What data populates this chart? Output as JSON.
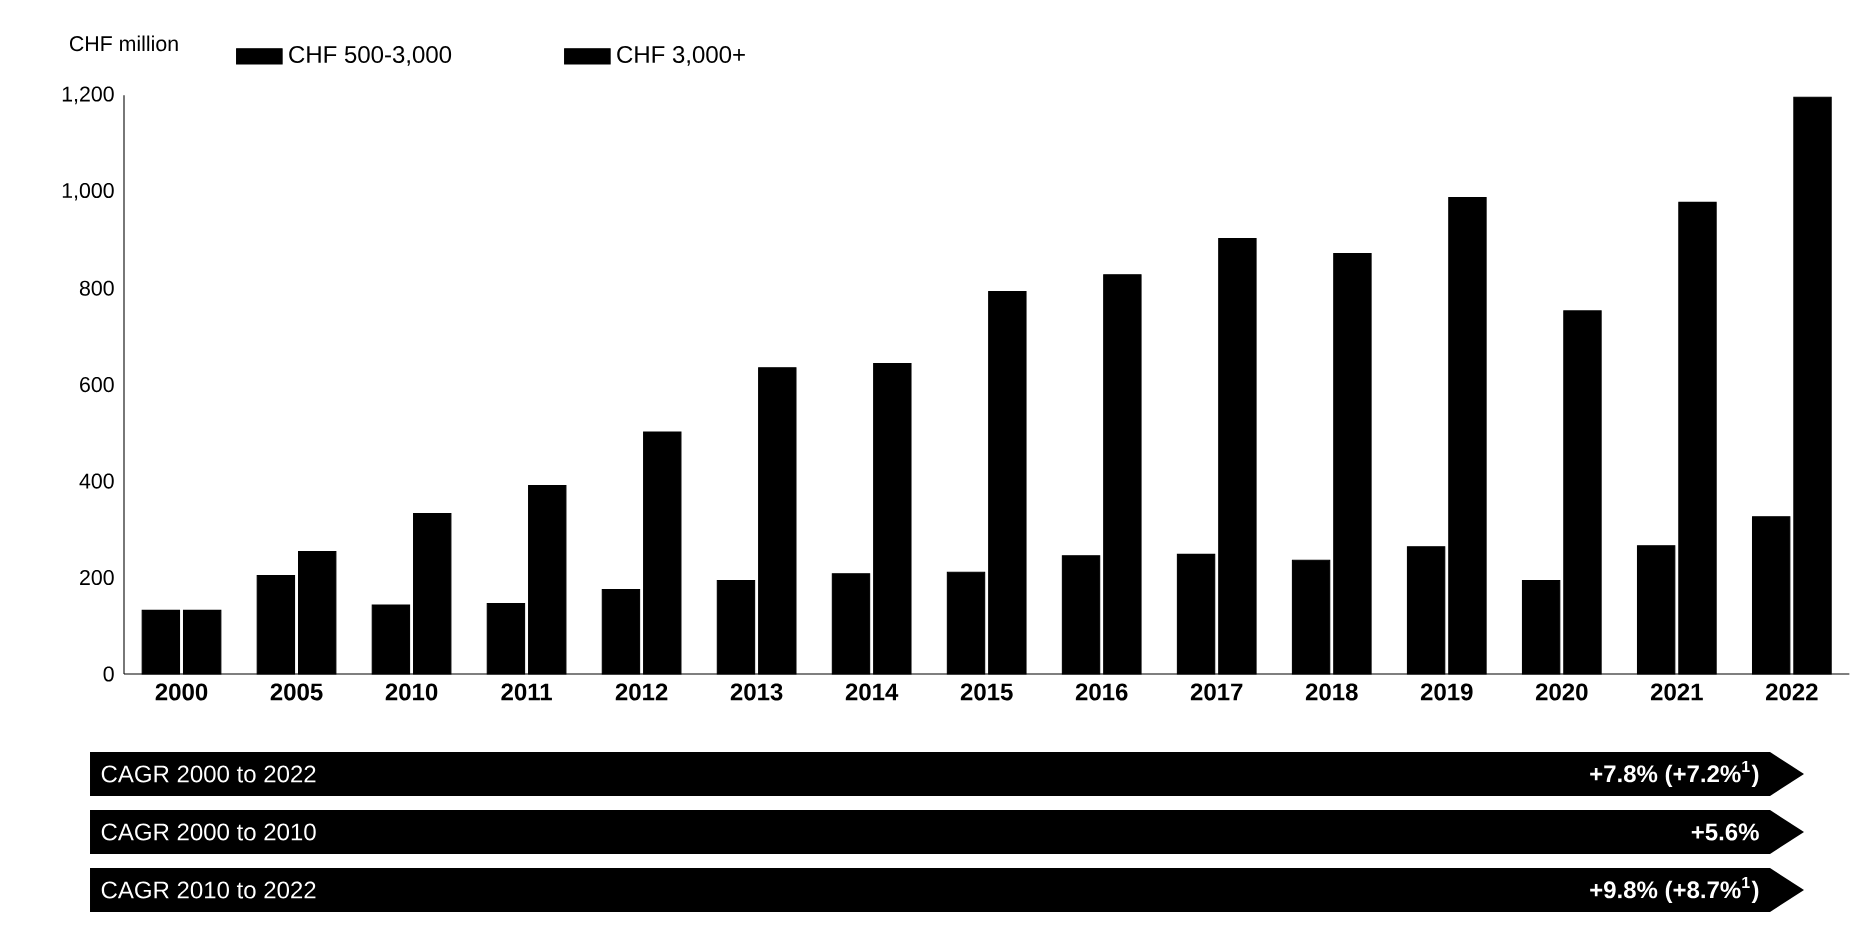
{
  "chart_data": {
    "type": "bar",
    "ylabel": "CHF million",
    "categories": [
      "2000",
      "2005",
      "2010",
      "2011",
      "2012",
      "2013",
      "2014",
      "2015",
      "2016",
      "2017",
      "2018",
      "2019",
      "2020",
      "2021",
      "2022"
    ],
    "series": [
      {
        "name": "CHF 500-3,000",
        "color": "#000000",
        "values": [
          132,
          204,
          143,
          146,
          175,
          194,
          208,
          211,
          245,
          248,
          236,
          264,
          194,
          266,
          326
        ]
      },
      {
        "name": "CHF 3,000+",
        "color": "#000000",
        "values": [
          132,
          254,
          333,
          391,
          502,
          635,
          644,
          793,
          828,
          903,
          872,
          988,
          753,
          978,
          1196
        ]
      }
    ],
    "ylim": [
      0,
      1200
    ],
    "yticks": [
      0,
      200,
      400,
      600,
      800,
      {
        "value": 1000,
        "label": "1,000"
      },
      {
        "value": 1200,
        "label": "1,200"
      }
    ],
    "grid": false,
    "legend": "top",
    "annotations": [
      "CAGR 2000 to 2022",
      "+7.8% (+7.2%$^{1}$)",
      "CAGR 2000 to 2010",
      "+5.6%",
      "CAGR 2010 to 2022",
      "+9.8% (+8.7%$^{1}$)"
    ]
  }
}
